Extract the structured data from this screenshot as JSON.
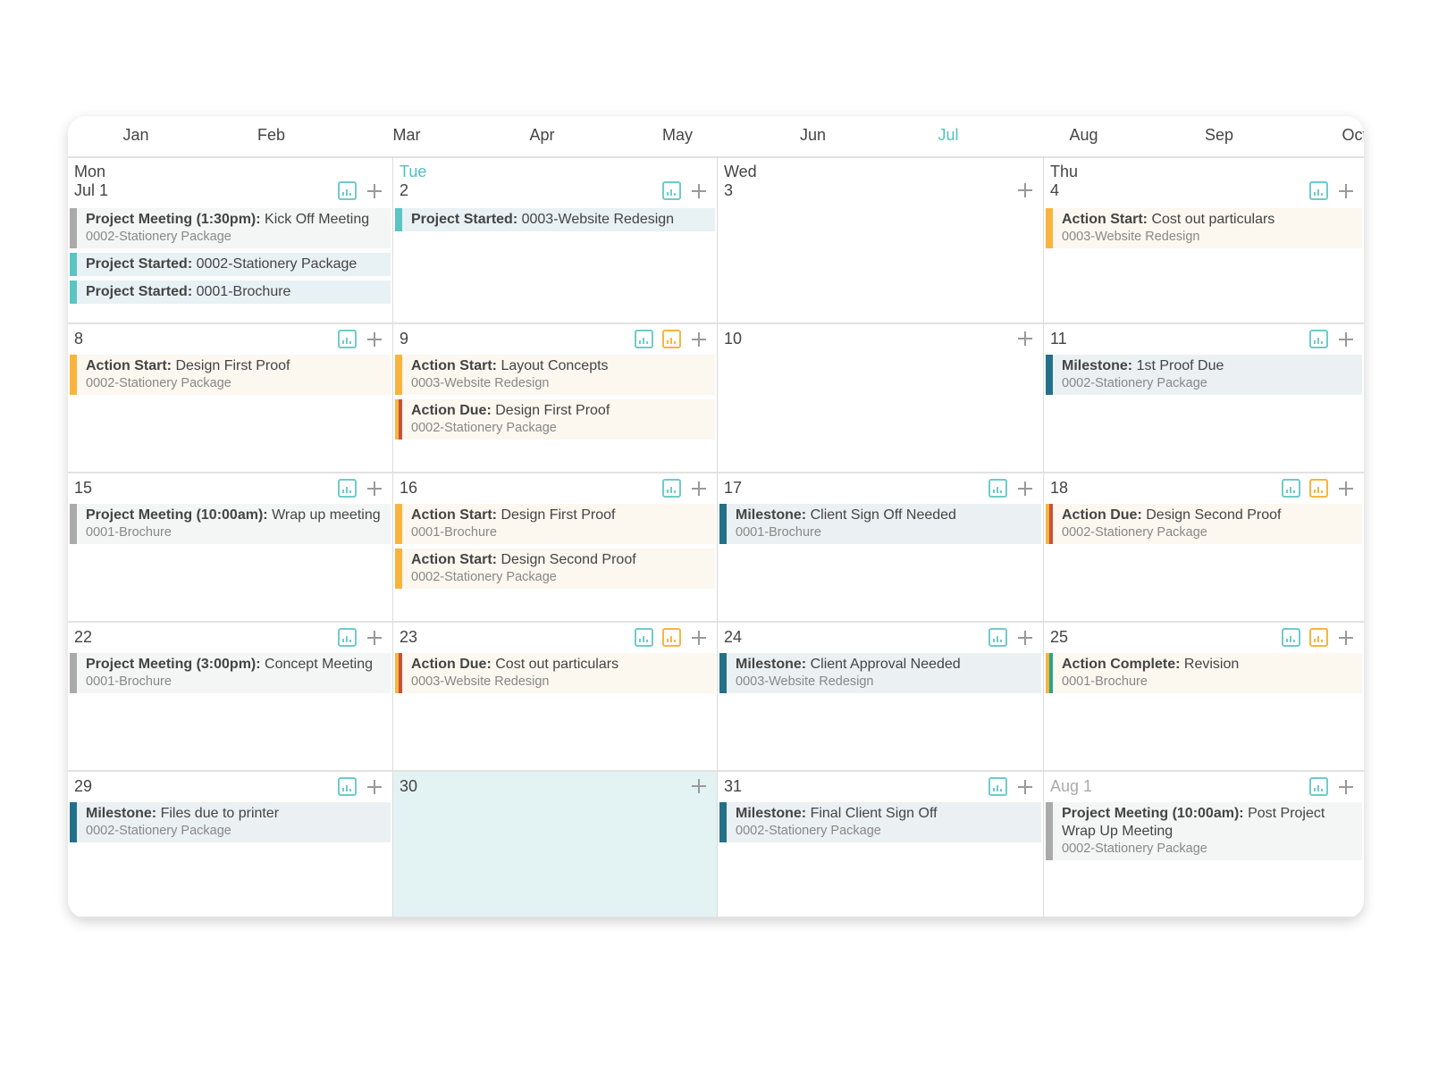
{
  "colors": {
    "accent": "#4fc0c4",
    "meeting": "#aaaaaa",
    "project_started": "#5bc4c4",
    "milestone": "#24708a",
    "action": "#f9b43f",
    "due": "#c9513b",
    "complete": "#27a58b",
    "highlight_day": "#e3f2f2"
  },
  "months": [
    {
      "label": "Jan"
    },
    {
      "label": "Feb"
    },
    {
      "label": "Mar"
    },
    {
      "label": "Apr"
    },
    {
      "label": "May"
    },
    {
      "label": "Jun"
    },
    {
      "label": "Jul",
      "active": true
    },
    {
      "label": "Aug"
    },
    {
      "label": "Sep"
    },
    {
      "label": "Oct"
    }
  ],
  "weeks": [
    [
      {
        "weekday": "Mon",
        "date": "Jul 1",
        "charts": [
          "teal"
        ],
        "events": [
          {
            "type": "meeting",
            "label": "Project Meeting (1:30pm):",
            "title": "Kick Off Meeting",
            "project": "0002-Stationery Package"
          },
          {
            "type": "project_started",
            "label": "Project Started:",
            "title": "0002-Stationery Package"
          },
          {
            "type": "project_started",
            "label": "Project Started:",
            "title": "0001-Brochure"
          }
        ]
      },
      {
        "weekday": "Tue",
        "today": true,
        "date": "2",
        "charts": [
          "teal"
        ],
        "events": [
          {
            "type": "project_started",
            "label": "Project Started:",
            "title": "0003-Website Redesign"
          }
        ]
      },
      {
        "weekday": "Wed",
        "date": "3",
        "charts": [],
        "events": []
      },
      {
        "weekday": "Thu",
        "date": "4",
        "charts": [
          "teal"
        ],
        "events": [
          {
            "type": "action",
            "label": "Action Start:",
            "title": "Cost out particulars",
            "project": "0003-Website Redesign"
          }
        ]
      }
    ],
    [
      {
        "date": "8",
        "charts": [
          "teal"
        ],
        "events": [
          {
            "type": "action",
            "label": "Action Start:",
            "title": "Design First Proof",
            "project": "0002-Stationery Package"
          }
        ]
      },
      {
        "date": "9",
        "charts": [
          "teal",
          "orange"
        ],
        "events": [
          {
            "type": "action",
            "label": "Action Start:",
            "title": "Layout Concepts",
            "project": "0003-Website Redesign"
          },
          {
            "type": "due",
            "label": "Action Due:",
            "title": "Design First Proof",
            "project": "0002-Stationery Package"
          }
        ]
      },
      {
        "date": "10",
        "charts": [],
        "events": []
      },
      {
        "date": "11",
        "charts": [
          "teal"
        ],
        "events": [
          {
            "type": "milestone",
            "label": "Milestone:",
            "title": "1st Proof Due",
            "project": "0002-Stationery Package"
          }
        ]
      }
    ],
    [
      {
        "date": "15",
        "charts": [
          "teal"
        ],
        "events": [
          {
            "type": "meeting",
            "label": "Project Meeting (10:00am):",
            "title": "Wrap up meeting",
            "project": "0001-Brochure"
          }
        ]
      },
      {
        "date": "16",
        "charts": [
          "teal"
        ],
        "events": [
          {
            "type": "action",
            "label": "Action Start:",
            "title": "Design First Proof",
            "project": "0001-Brochure"
          },
          {
            "type": "action",
            "label": "Action Start:",
            "title": "Design Second Proof",
            "project": "0002-Stationery Package"
          }
        ]
      },
      {
        "date": "17",
        "charts": [
          "teal"
        ],
        "events": [
          {
            "type": "milestone",
            "label": "Milestone:",
            "title": "Client Sign Off Needed",
            "project": "0001-Brochure"
          }
        ]
      },
      {
        "date": "18",
        "charts": [
          "teal",
          "orange"
        ],
        "events": [
          {
            "type": "due",
            "label": "Action Due:",
            "title": "Design Second Proof",
            "project": "0002-Stationery Package"
          }
        ]
      }
    ],
    [
      {
        "date": "22",
        "charts": [
          "teal"
        ],
        "events": [
          {
            "type": "meeting",
            "label": "Project Meeting (3:00pm):",
            "title": "Concept Meeting",
            "project": "0001-Brochure"
          }
        ]
      },
      {
        "date": "23",
        "charts": [
          "teal",
          "orange"
        ],
        "events": [
          {
            "type": "due",
            "label": "Action Due:",
            "title": "Cost out particulars",
            "project": "0003-Website Redesign"
          }
        ]
      },
      {
        "date": "24",
        "charts": [
          "teal"
        ],
        "events": [
          {
            "type": "milestone",
            "label": "Milestone:",
            "title": "Client Approval Needed",
            "project": "0003-Website Redesign"
          }
        ]
      },
      {
        "date": "25",
        "charts": [
          "teal",
          "orange"
        ],
        "events": [
          {
            "type": "complete",
            "label": "Action Complete:",
            "title": "Revision",
            "project": "0001-Brochure"
          }
        ]
      }
    ],
    [
      {
        "date": "29",
        "charts": [
          "teal"
        ],
        "events": [
          {
            "type": "milestone",
            "label": "Milestone:",
            "title": "Files due to printer",
            "project": "0002-Stationery Package"
          }
        ]
      },
      {
        "date": "30",
        "highlight": true,
        "charts": [],
        "events": []
      },
      {
        "date": "31",
        "charts": [
          "teal"
        ],
        "events": [
          {
            "type": "milestone",
            "label": "Milestone:",
            "title": "Final Client Sign Off",
            "project": "0002-Stationery Package"
          }
        ]
      },
      {
        "date": "Aug 1",
        "other_month": true,
        "charts": [
          "teal"
        ],
        "events": [
          {
            "type": "meeting",
            "label": "Project Meeting (10:00am):",
            "title": "Post Project Wrap Up Meeting",
            "project": "0002-Stationery Package"
          }
        ]
      }
    ]
  ]
}
